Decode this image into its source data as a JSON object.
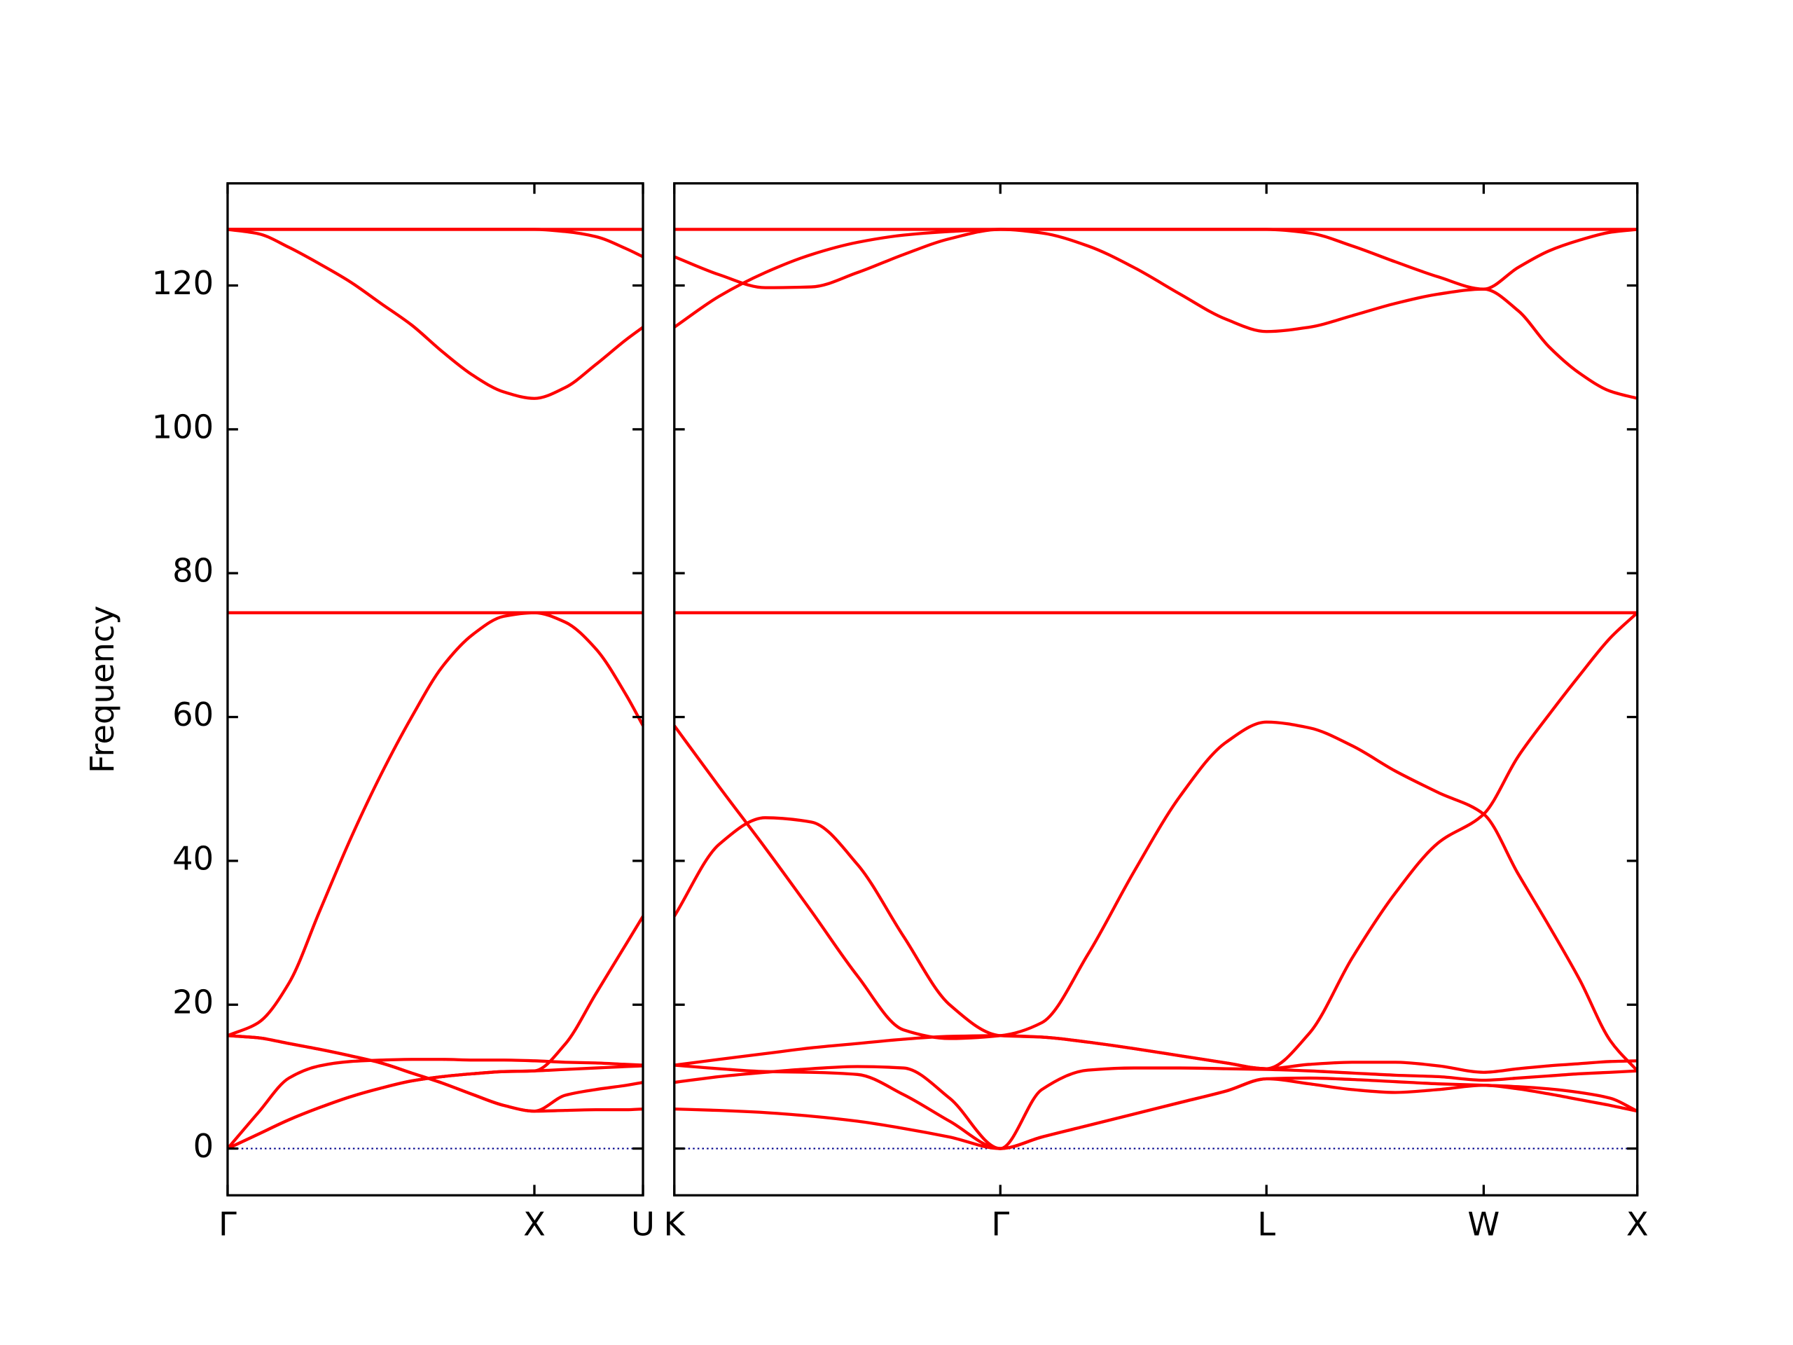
{
  "chart_data": [
    {
      "type": "line",
      "ylabel": "Frequency",
      "color": "#ff0000",
      "zero_line_color": "#00008b",
      "ytick_labels": true,
      "xlim": [
        0,
        1.354
      ],
      "ylim": [
        -6.5,
        134.2
      ],
      "xticks": [
        {
          "value": 0,
          "label": "Γ"
        },
        {
          "value": 1.0,
          "label": "X"
        },
        {
          "value": 1.354,
          "label": "U"
        }
      ],
      "yticks": [
        0,
        20,
        40,
        60,
        80,
        100,
        120
      ],
      "x": [
        0,
        0.1,
        0.2,
        0.3,
        0.4,
        0.5,
        0.6,
        0.7,
        0.8,
        0.9,
        1.0,
        1.1,
        1.2,
        1.3,
        1.354
      ],
      "series": [
        {
          "values": [
            127.8,
            127.8,
            127.8,
            127.8,
            127.8,
            127.8,
            127.8,
            127.8,
            127.8,
            127.8,
            127.8,
            127.8,
            127.8,
            127.8,
            127.8
          ]
        },
        {
          "values": [
            127.8,
            127.2,
            125.3,
            123.0,
            120.5,
            117.5,
            114.5,
            110.8,
            107.5,
            105.2,
            104.3,
            105.8,
            109.0,
            112.5,
            114.2
          ]
        },
        {
          "values": [
            127.8,
            127.8,
            127.8,
            127.8,
            127.8,
            127.8,
            127.8,
            127.8,
            127.8,
            127.8,
            127.8,
            127.5,
            126.8,
            125.1,
            124.0
          ]
        },
        {
          "values": [
            74.5,
            74.5,
            74.5,
            74.5,
            74.5,
            74.5,
            74.5,
            74.5,
            74.5,
            74.5,
            74.5,
            74.5,
            74.5,
            74.5,
            74.5
          ]
        },
        {
          "values": [
            15.7,
            17.5,
            23.0,
            33.0,
            43.0,
            52.0,
            60.0,
            67.0,
            71.5,
            74.0,
            74.5,
            73.2,
            69.5,
            63.0,
            58.8
          ]
        },
        {
          "values": [
            15.7,
            15.4,
            14.6,
            13.8,
            12.9,
            11.9,
            10.5,
            9.1,
            7.5,
            6.0,
            5.2,
            5.3,
            5.4,
            5.4,
            5.5
          ]
        },
        {
          "values": [
            15.7,
            15.4,
            14.6,
            13.8,
            12.9,
            11.9,
            10.5,
            9.1,
            7.5,
            6.0,
            5.2,
            7.4,
            8.2,
            8.8,
            9.2
          ]
        },
        {
          "values": [
            0,
            5.0,
            9.8,
            11.5,
            12.1,
            12.3,
            12.4,
            12.4,
            12.3,
            12.3,
            12.2,
            12.0,
            11.9,
            11.7,
            11.6
          ]
        },
        {
          "values": [
            0,
            2.0,
            4.0,
            5.7,
            7.2,
            8.4,
            9.4,
            10.0,
            10.4,
            10.7,
            10.8,
            11.0,
            11.2,
            11.4,
            11.5
          ]
        },
        {
          "values": [
            0,
            2.0,
            4.0,
            5.7,
            7.2,
            8.4,
            9.4,
            10.0,
            10.4,
            10.7,
            10.8,
            14.5,
            21.5,
            28.5,
            32.3
          ]
        }
      ]
    },
    {
      "type": "line",
      "color": "#ff0000",
      "zero_line_color": "#00008b",
      "ytick_labels": false,
      "xlim": [
        1.354,
        4.488
      ],
      "ylim": [
        -6.5,
        134.2
      ],
      "xticks": [
        {
          "value": 1.354,
          "label": "K"
        },
        {
          "value": 2.415,
          "label": "Γ"
        },
        {
          "value": 3.281,
          "label": "L"
        },
        {
          "value": 3.988,
          "label": "W"
        },
        {
          "value": 4.488,
          "label": "X"
        }
      ],
      "yticks": [
        0,
        20,
        40,
        60,
        80,
        100,
        120
      ],
      "x": [
        1.354,
        1.5,
        1.65,
        1.8,
        1.95,
        2.1,
        2.25,
        2.415,
        2.55,
        2.7,
        2.85,
        3.0,
        3.15,
        3.281,
        3.42,
        3.56,
        3.7,
        3.84,
        3.988,
        4.1,
        4.2,
        4.3,
        4.4,
        4.488
      ],
      "series": [
        {
          "values": [
            127.8,
            127.8,
            127.8,
            127.8,
            127.8,
            127.8,
            127.8,
            127.8,
            127.8,
            127.8,
            127.8,
            127.8,
            127.8,
            127.8,
            127.8,
            127.8,
            127.8,
            127.8,
            127.8,
            127.8,
            127.8,
            127.8,
            127.8,
            127.8
          ]
        },
        {
          "values": [
            124.0,
            121.5,
            119.7,
            119.8,
            121.8,
            124.3,
            126.5,
            127.8,
            127.3,
            125.5,
            122.5,
            118.8,
            115.3,
            113.6,
            114.2,
            115.8,
            117.5,
            118.8,
            119.5,
            116.5,
            111.5,
            107.8,
            105.3,
            104.3
          ]
        },
        {
          "values": [
            114.2,
            118.5,
            121.8,
            124.3,
            126.0,
            127.0,
            127.5,
            127.8,
            127.8,
            127.8,
            127.8,
            127.8,
            127.8,
            127.8,
            127.3,
            125.5,
            123.3,
            121.2,
            119.5,
            122.5,
            124.8,
            126.3,
            127.4,
            127.8
          ]
        },
        {
          "values": [
            74.5,
            74.5,
            74.5,
            74.5,
            74.5,
            74.5,
            74.5,
            74.5,
            74.5,
            74.5,
            74.5,
            74.5,
            74.5,
            74.5,
            74.5,
            74.5,
            74.5,
            74.5,
            74.5,
            74.5,
            74.5,
            74.5,
            74.5,
            74.5
          ]
        },
        {
          "values": [
            58.8,
            50.3,
            41.8,
            33.0,
            24.0,
            16.5,
            15.3,
            15.7,
            17.5,
            27.0,
            38.5,
            49.0,
            56.5,
            59.3,
            58.5,
            56.0,
            52.5,
            49.5,
            46.5,
            38.2,
            31.0,
            23.5,
            15.0,
            10.8
          ]
        },
        {
          "values": [
            32.3,
            42.3,
            46.0,
            45.4,
            39.5,
            29.5,
            20.0,
            15.7,
            15.5,
            14.8,
            13.9,
            12.9,
            11.9,
            11.1,
            16.0,
            26.5,
            35.5,
            42.5,
            46.5,
            54.5,
            60.3,
            65.8,
            71.0,
            74.5
          ]
        },
        {
          "values": [
            11.6,
            12.4,
            13.2,
            14.0,
            14.6,
            15.2,
            15.6,
            15.7,
            15.5,
            14.8,
            13.9,
            12.9,
            11.9,
            11.1,
            11.7,
            12.0,
            12.0,
            11.5,
            10.6,
            11.1,
            11.5,
            11.8,
            12.1,
            12.2
          ]
        },
        {
          "values": [
            11.6,
            11.1,
            10.7,
            10.6,
            10.3,
            7.5,
            3.8,
            0,
            8.2,
            10.9,
            11.2,
            11.2,
            11.1,
            11.0,
            10.8,
            10.5,
            10.2,
            10.0,
            9.5,
            9.8,
            10.1,
            10.4,
            10.6,
            10.8
          ]
        },
        {
          "values": [
            9.2,
            10.0,
            10.6,
            11.1,
            11.4,
            11.2,
            7.0,
            0,
            1.6,
            3.2,
            4.8,
            6.4,
            8.0,
            9.7,
            9.0,
            8.2,
            7.8,
            8.2,
            8.8,
            8.3,
            7.6,
            6.8,
            6.0,
            5.2
          ]
        },
        {
          "values": [
            5.5,
            5.3,
            5.0,
            4.5,
            3.8,
            2.8,
            1.6,
            0,
            1.6,
            3.2,
            4.8,
            6.4,
            8.0,
            9.7,
            9.8,
            9.6,
            9.3,
            9.0,
            8.8,
            8.6,
            8.3,
            7.8,
            7.0,
            5.2
          ]
        }
      ]
    }
  ]
}
